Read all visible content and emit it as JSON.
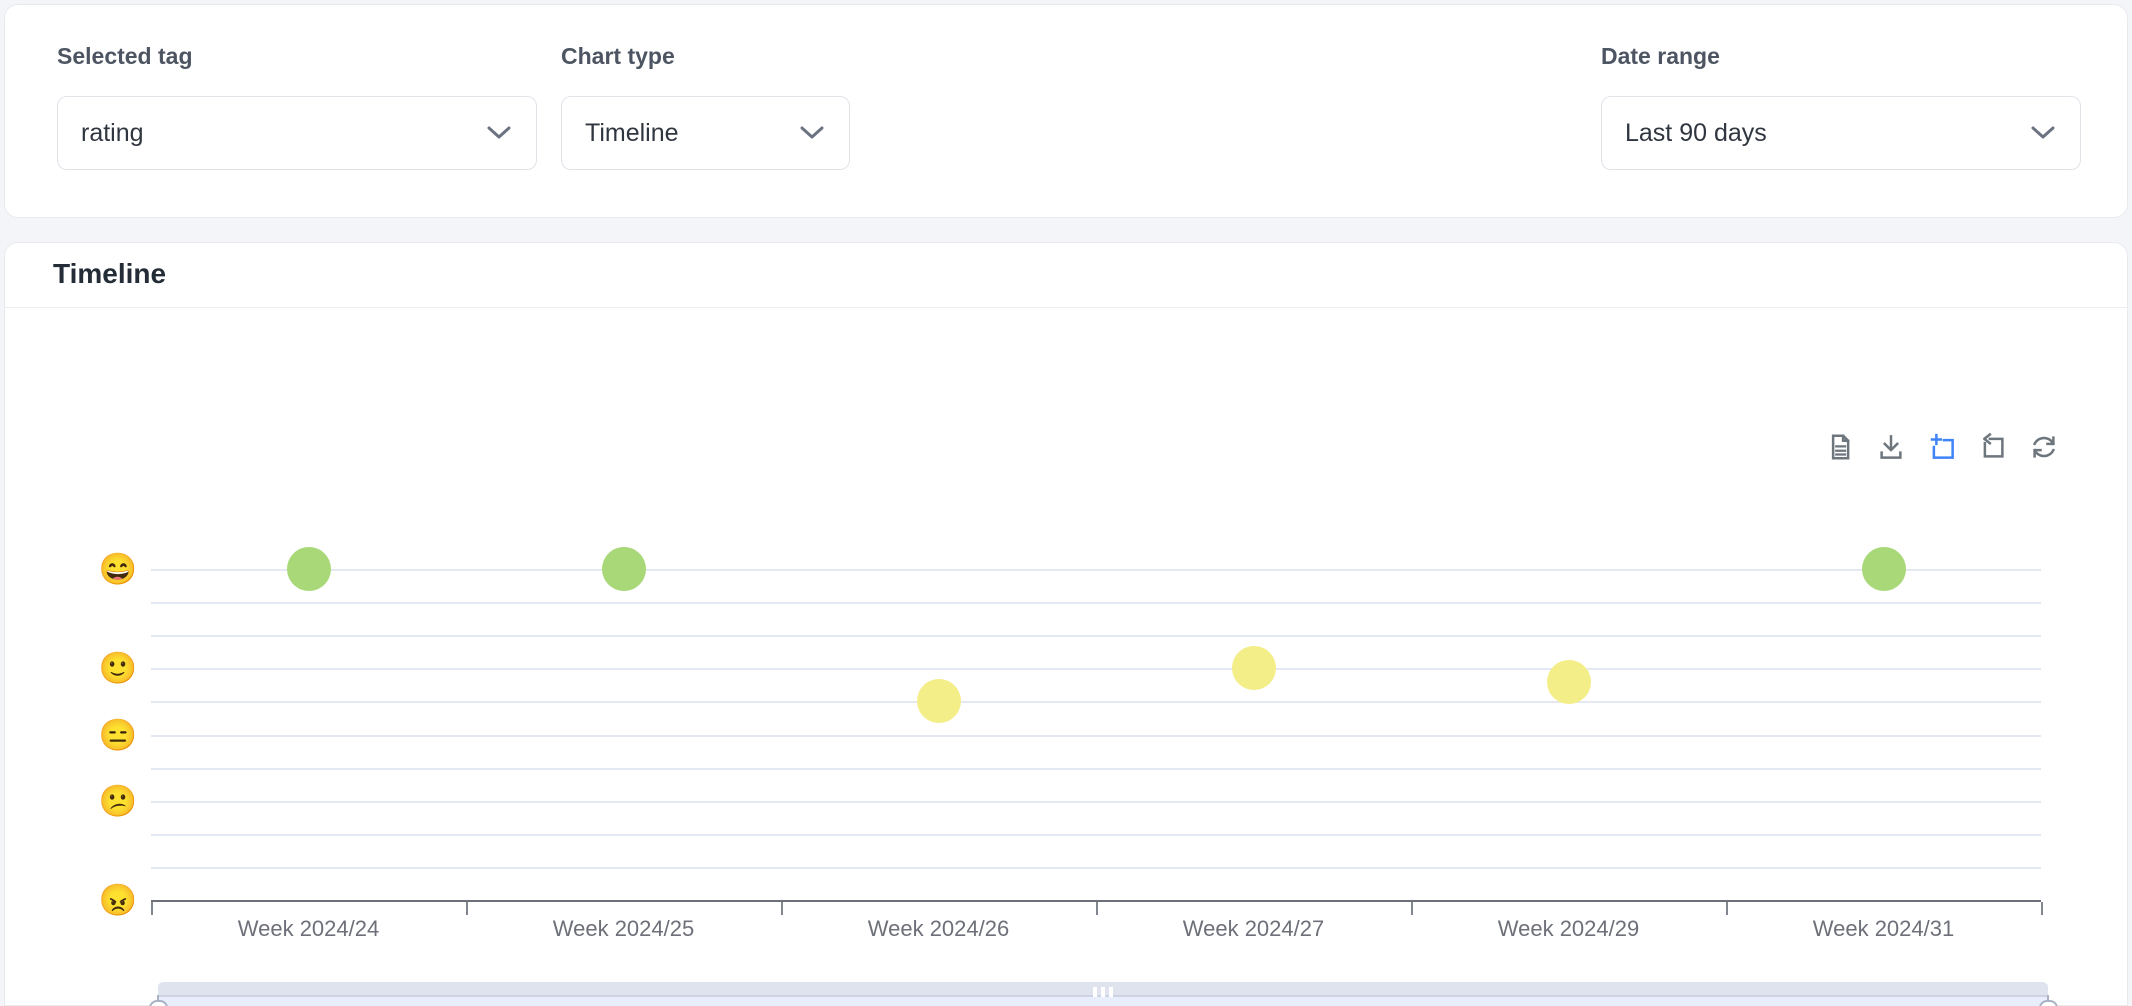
{
  "colors": {
    "green": "#a8d877",
    "yellow": "#f4ee89",
    "accent_blue": "#3e83f7",
    "icon_gray": "#6d757d",
    "axis_gray": "#6E7079"
  },
  "controls": {
    "selected_tag": {
      "label": "Selected tag",
      "value": "rating"
    },
    "chart_type": {
      "label": "Chart type",
      "value": "Timeline"
    },
    "date_range": {
      "label": "Date range",
      "value": "Last 90 days"
    }
  },
  "panel": {
    "title": "Timeline"
  },
  "toolbar": {
    "icons": [
      "data-view-icon",
      "save-as-image-icon",
      "data-zoom-icon (active, blue)",
      "zoom-reset-icon",
      "restore-icon"
    ]
  },
  "chart_data": {
    "type": "scatter",
    "title": "Timeline",
    "categories": [
      "Week 2024/24",
      "Week 2024/25",
      "Week 2024/26",
      "Week 2024/27",
      "Week 2024/29",
      "Week 2024/31"
    ],
    "y_axis": {
      "kind": "rating emoji scale (5 = best, 1 = worst)",
      "grid_intervals": 10,
      "labels": [
        {
          "emoji": "😄",
          "value": 5,
          "row": 0
        },
        {
          "emoji": "🙂",
          "value": 4,
          "row": 3
        },
        {
          "emoji": "😑",
          "value": 3,
          "row": 5
        },
        {
          "emoji": "😕",
          "value": 2,
          "row": 7
        },
        {
          "emoji": "😠",
          "value": 1,
          "row": 10
        }
      ]
    },
    "series": [
      {
        "name": "rating",
        "points": [
          {
            "category": "Week 2024/24",
            "rating": 5.0,
            "row": 0,
            "color": "green"
          },
          {
            "category": "Week 2024/25",
            "rating": 5.0,
            "row": 0,
            "color": "green"
          },
          {
            "category": "Week 2024/26",
            "rating": 3.3,
            "row": 4,
            "color": "yellow"
          },
          {
            "category": "Week 2024/27",
            "rating": 3.8,
            "row": 3,
            "color": "yellow"
          },
          {
            "category": "Week 2024/29",
            "rating": 3.7,
            "row": 3.4,
            "color": "yellow"
          },
          {
            "category": "Week 2024/31",
            "rating": 5.0,
            "row": 0,
            "color": "green"
          }
        ]
      }
    ],
    "legend": null,
    "grid": "horizontal gridlines only",
    "datazoom": {
      "range_start_pct": 0,
      "range_end_pct": 100,
      "shadow_profile": [
        [
          0,
          10
        ],
        [
          397,
          12
        ],
        [
          768,
          44
        ],
        [
          1890,
          12
        ]
      ],
      "shadow_height": 53
    }
  }
}
